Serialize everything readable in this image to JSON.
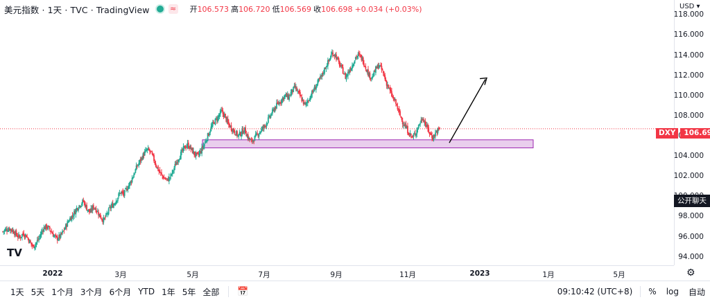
{
  "header": {
    "title": "美元指数 · 1天 · TVC · TradingView",
    "status_icons": [
      "live-dot-icon",
      "wave-icon"
    ],
    "ohlc": [
      {
        "k": "开",
        "v": "106.573"
      },
      {
        "k": "高",
        "v": "106.720"
      },
      {
        "k": "低",
        "v": "106.569"
      },
      {
        "k": "收",
        "v": "106.698"
      },
      {
        "k": "",
        "v": "+0.034 (+0.03%)"
      }
    ]
  },
  "price_axis": {
    "currency": "USD ▾",
    "ticks": [
      "118.000",
      "116.000",
      "114.000",
      "112.000",
      "110.000",
      "108.000",
      "106.000",
      "104.000",
      "102.000",
      "100.000",
      "98.000",
      "96.000",
      "94.000"
    ],
    "last_symbol": "DXY",
    "last_price": "106.698",
    "chat_label": "公开聊天"
  },
  "time_axis": {
    "ticks": [
      "2022",
      "3月",
      "5月",
      "7月",
      "9月",
      "11月",
      "2023",
      "1月",
      "5月"
    ]
  },
  "toolbar": {
    "ranges": [
      "1天",
      "5天",
      "1个月",
      "3个月",
      "6个月",
      "YTD",
      "1年",
      "5年",
      "全部"
    ],
    "clock": "09:10:42 (UTC+8)",
    "percent": "%",
    "log": "log",
    "auto": "自动"
  },
  "colors": {
    "up": "#22ab94",
    "down": "#f23645",
    "zone": "#e1bee7",
    "zone_border": "#9c27b0"
  },
  "chart_data": {
    "type": "candlestick",
    "symbol": "DXY",
    "interval": "1D",
    "ylim": [
      93.5,
      118.5
    ],
    "path": [
      96.5,
      96.7,
      96.8,
      96.6,
      96.2,
      95.9,
      96.3,
      96.1,
      95.5,
      95.0,
      95.4,
      96.0,
      96.8,
      97.0,
      96.7,
      96.2,
      95.8,
      96.0,
      96.5,
      97.2,
      97.8,
      98.2,
      98.8,
      99.2,
      99.5,
      98.8,
      98.4,
      99.0,
      98.6,
      98.0,
      97.6,
      98.2,
      98.9,
      99.2,
      99.8,
      100.4,
      100.2,
      100.8,
      101.4,
      102.2,
      103.0,
      103.6,
      104.2,
      104.6,
      104.4,
      103.6,
      102.8,
      102.2,
      101.8,
      101.6,
      102.0,
      102.8,
      103.6,
      104.2,
      104.8,
      105.1,
      104.7,
      104.2,
      104.0,
      104.5,
      105.2,
      106.0,
      106.8,
      107.4,
      107.8,
      108.4,
      108.0,
      107.2,
      106.8,
      106.4,
      106.0,
      106.3,
      106.6,
      105.8,
      105.4,
      105.8,
      106.2,
      106.6,
      107.0,
      107.6,
      108.2,
      108.8,
      109.2,
      109.6,
      110.0,
      109.8,
      110.4,
      110.8,
      110.2,
      109.6,
      109.0,
      109.6,
      110.2,
      110.8,
      111.4,
      112.0,
      112.8,
      113.4,
      114.2,
      114.0,
      113.2,
      112.6,
      111.8,
      112.4,
      113.0,
      113.8,
      114.0,
      113.6,
      112.8,
      112.0,
      111.8,
      112.6,
      113.0,
      112.4,
      111.4,
      110.6,
      109.8,
      109.2,
      108.2,
      107.4,
      106.8,
      106.2,
      105.8,
      106.4,
      107.2,
      107.8,
      107.0,
      106.3,
      105.8,
      106.4,
      106.698
    ]
  },
  "annotations": {
    "support_zone": {
      "from": 104.8,
      "to": 105.6
    },
    "arrow_target": 111.8,
    "last_price_line": 106.698
  }
}
